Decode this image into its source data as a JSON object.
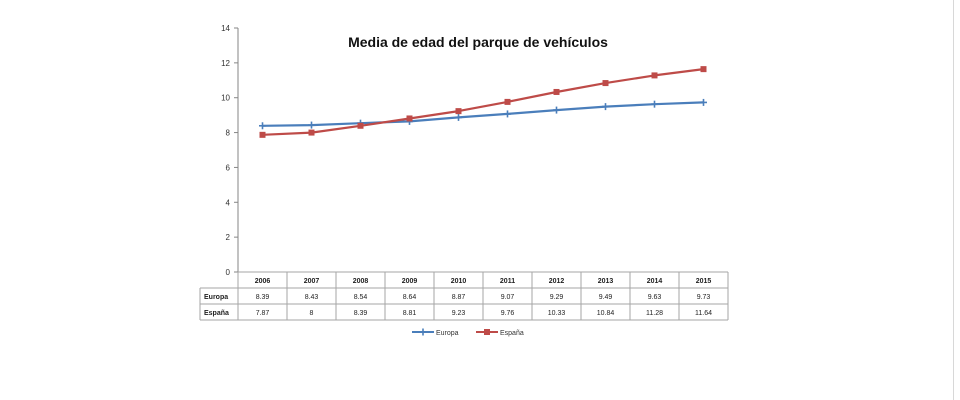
{
  "chart_data": {
    "type": "line",
    "title": "Media de edad del parque de vehículos",
    "categories": [
      "2006",
      "2007",
      "2008",
      "2009",
      "2010",
      "2011",
      "2012",
      "2013",
      "2014",
      "2015"
    ],
    "series": [
      {
        "name": "Europa",
        "color": "#4a7ebb",
        "marker": "plus",
        "values": [
          8.39,
          8.43,
          8.54,
          8.64,
          8.87,
          9.07,
          9.29,
          9.49,
          9.63,
          9.73
        ],
        "labels": [
          "8.39",
          "8.43",
          "8.54",
          "8.64",
          "8.87",
          "9.07",
          "9.29",
          "9.49",
          "9.63",
          "9.73"
        ]
      },
      {
        "name": "España",
        "color": "#be4b48",
        "marker": "square",
        "values": [
          7.87,
          8,
          8.39,
          8.81,
          9.23,
          9.76,
          10.33,
          10.84,
          11.28,
          11.64
        ],
        "labels": [
          "7.87",
          "8",
          "8.39",
          "8.81",
          "9.23",
          "9.76",
          "10.33",
          "10.84",
          "11.28",
          "11.64"
        ]
      }
    ],
    "ylim": [
      0,
      14
    ],
    "yticks": [
      "0",
      "2",
      "4",
      "6",
      "8",
      "10",
      "12",
      "14"
    ],
    "grid": false,
    "legend": "bottom",
    "data_table": true
  }
}
